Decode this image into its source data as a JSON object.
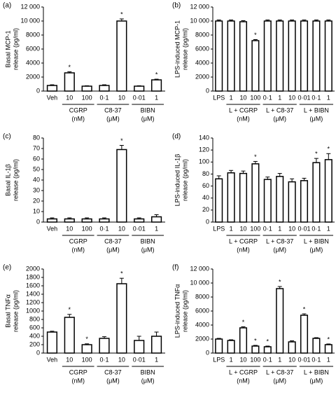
{
  "chart_data": [
    {
      "type": "bar",
      "panel": "(a)",
      "ylabel": [
        "Basal MCP-1",
        "release (pg/ml)"
      ],
      "categories": [
        "Veh",
        "10",
        "100",
        "0·1",
        "10",
        "0·01",
        "1"
      ],
      "values": [
        800,
        2600,
        700,
        800,
        10000,
        700,
        1600
      ],
      "errors": [
        100,
        150,
        60,
        100,
        300,
        60,
        100
      ],
      "significance": [
        null,
        "*",
        null,
        null,
        "*",
        null,
        "*"
      ],
      "groups": [
        {
          "name": "CGRP",
          "unit": "(nM)",
          "first": 1,
          "last": 2
        },
        {
          "name": "C8-37",
          "unit": "(μM)",
          "first": 3,
          "last": 4
        },
        {
          "name": "BIBN",
          "unit": "(μM)",
          "first": 5,
          "last": 6
        }
      ],
      "ylim": [
        0,
        12000
      ],
      "yticks": [
        0,
        2000,
        4000,
        6000,
        8000,
        {
          "value": 10000,
          "label": "10 000"
        },
        {
          "value": 12000,
          "label": "12 000"
        }
      ]
    },
    {
      "type": "bar",
      "panel": "(b)",
      "ylabel": [
        "LPS-induced MCP-1",
        "release (pg/ml)"
      ],
      "categories": [
        "LPS",
        "1",
        "10",
        "100",
        "0·1",
        "1",
        "10",
        "0·01",
        "0·1",
        "1"
      ],
      "values": [
        10000,
        10000,
        9900,
        7200,
        10000,
        10000,
        10000,
        10000,
        10000,
        10000
      ],
      "errors": [
        150,
        150,
        150,
        150,
        150,
        150,
        150,
        150,
        150,
        150
      ],
      "significance": [
        null,
        null,
        null,
        "*",
        null,
        null,
        null,
        null,
        null,
        null
      ],
      "groups": [
        {
          "name": "L + CGRP",
          "unit": "(nM)",
          "first": 1,
          "last": 3
        },
        {
          "name": "L + C8-37",
          "unit": "(μM)",
          "first": 4,
          "last": 6
        },
        {
          "name": "L + BIBN",
          "unit": "(μM)",
          "first": 7,
          "last": 9
        }
      ],
      "ylim": [
        0,
        12000
      ],
      "yticks": [
        0,
        2000,
        4000,
        6000,
        8000,
        {
          "value": 10000,
          "label": "10 000"
        },
        {
          "value": 12000,
          "label": "12 000"
        }
      ]
    },
    {
      "type": "bar",
      "panel": "(c)",
      "ylabel": [
        "Basal IL-1β",
        "release (pg/ml)"
      ],
      "categories": [
        "Veh",
        "10",
        "100",
        "0·1",
        "10",
        "0·01",
        "1"
      ],
      "values": [
        3,
        3,
        3,
        3,
        69,
        3,
        5
      ],
      "errors": [
        1,
        1,
        1,
        1,
        4,
        1,
        2
      ],
      "significance": [
        null,
        null,
        null,
        null,
        "*",
        null,
        null
      ],
      "groups": [
        {
          "name": "CGRP",
          "unit": "(nM)",
          "first": 1,
          "last": 2
        },
        {
          "name": "C8-37",
          "unit": "(μM)",
          "first": 3,
          "last": 4
        },
        {
          "name": "BIBN",
          "unit": "(μM)",
          "first": 5,
          "last": 6
        }
      ],
      "ylim": [
        0,
        80
      ],
      "yticks": [
        0,
        10,
        20,
        30,
        40,
        50,
        60,
        70,
        80
      ]
    },
    {
      "type": "bar",
      "panel": "(d)",
      "ylabel": [
        "LPS-induced IL-1β",
        "release (pg/ml)"
      ],
      "categories": [
        "LPS",
        "1",
        "10",
        "100",
        "0·1",
        "1",
        "10",
        "0·01",
        "0·1",
        "1"
      ],
      "values": [
        72,
        82,
        81,
        97,
        71,
        76,
        67,
        69,
        99,
        104
      ],
      "errors": [
        5,
        4,
        4,
        4,
        4,
        5,
        5,
        4,
        7,
        10
      ],
      "significance": [
        null,
        null,
        null,
        "*",
        null,
        null,
        null,
        null,
        "*",
        "*"
      ],
      "groups": [
        {
          "name": "L + CGRP",
          "unit": "(nM)",
          "first": 1,
          "last": 3
        },
        {
          "name": "L + C8-37",
          "unit": "(μM)",
          "first": 4,
          "last": 6
        },
        {
          "name": "L + BIBN",
          "unit": "(μM)",
          "first": 7,
          "last": 9
        }
      ],
      "ylim": [
        0,
        140
      ],
      "yticks": [
        0,
        20,
        40,
        60,
        80,
        100,
        120,
        140
      ]
    },
    {
      "type": "bar",
      "panel": "(e)",
      "ylabel": [
        "Basal TNFα",
        "release (pg/ml)"
      ],
      "categories": [
        "Veh",
        "10",
        "100",
        "0·1",
        "10",
        "0·01",
        "1"
      ],
      "values": [
        500,
        850,
        200,
        350,
        1650,
        300,
        400
      ],
      "errors": [
        20,
        70,
        20,
        40,
        130,
        100,
        100
      ],
      "significance": [
        null,
        "*",
        "*",
        null,
        "*",
        null,
        null
      ],
      "groups": [
        {
          "name": "CGRP",
          "unit": "(nM)",
          "first": 1,
          "last": 2
        },
        {
          "name": "C8-37",
          "unit": "(μM)",
          "first": 3,
          "last": 4
        },
        {
          "name": "BIBN",
          "unit": "(μM)",
          "first": 5,
          "last": 6
        }
      ],
      "ylim": [
        0,
        2000
      ],
      "yticks": [
        0,
        200,
        400,
        600,
        800,
        1000,
        1200,
        1400,
        1600,
        1800,
        2000
      ]
    },
    {
      "type": "bar",
      "panel": "(f)",
      "ylabel": [
        "LPS-induced TNFα",
        "release (pg/ml)"
      ],
      "categories": [
        "LPS",
        "1",
        "10",
        "100",
        "0·1",
        "1",
        "10",
        "0·01",
        "0·1",
        "1"
      ],
      "values": [
        2000,
        1800,
        3600,
        1000,
        900,
        9200,
        1600,
        5400,
        2100,
        1200
      ],
      "errors": [
        100,
        100,
        150,
        100,
        100,
        300,
        150,
        200,
        100,
        100
      ],
      "significance": [
        null,
        null,
        "*",
        "*",
        "*",
        "*",
        null,
        "*",
        null,
        "*"
      ],
      "groups": [
        {
          "name": "L + CGRP",
          "unit": "(nM)",
          "first": 1,
          "last": 3
        },
        {
          "name": "L + C8-37",
          "unit": "(μM)",
          "first": 4,
          "last": 6
        },
        {
          "name": "L + BIBN",
          "unit": "(μM)",
          "first": 7,
          "last": 9
        }
      ],
      "ylim": [
        0,
        12000
      ],
      "yticks": [
        0,
        2000,
        4000,
        6000,
        8000,
        {
          "value": 10000,
          "label": "10 000"
        },
        {
          "value": 12000,
          "label": "12 000"
        }
      ]
    }
  ]
}
